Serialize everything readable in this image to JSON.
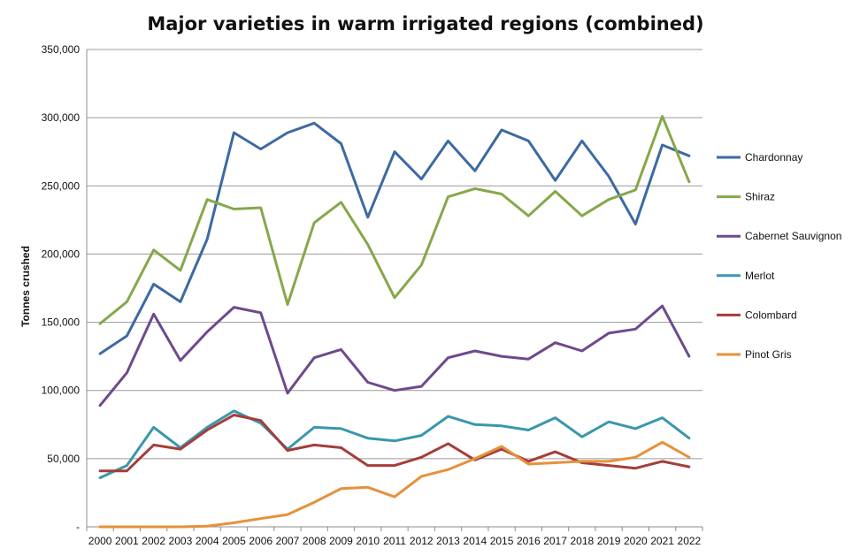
{
  "chart_data": {
    "type": "line",
    "title": "Major varieties in warm irrigated regions (combined)",
    "xlabel": "",
    "ylabel": "Tonnes crushed",
    "ylim": [
      0,
      350000
    ],
    "yticks": [
      0,
      50000,
      100000,
      150000,
      200000,
      250000,
      300000,
      350000
    ],
    "ytick_labels": [
      "-",
      "50,000",
      "100,000",
      "150,000",
      "200,000",
      "250,000",
      "300,000",
      "350,000"
    ],
    "grid": true,
    "legend_position": "right",
    "categories": [
      "2000",
      "2001",
      "2002",
      "2003",
      "2004",
      "2005",
      "2006",
      "2007",
      "2008",
      "2009",
      "2010",
      "2011",
      "2012",
      "2013",
      "2014",
      "2015",
      "2016",
      "2017",
      "2018",
      "2019",
      "2020",
      "2021",
      "2022"
    ],
    "series": [
      {
        "name": "Chardonnay",
        "color": "#3d6aa2",
        "values": [
          127000,
          140000,
          178000,
          165000,
          211000,
          289000,
          277000,
          289000,
          296000,
          281000,
          227000,
          275000,
          255000,
          283000,
          261000,
          291000,
          283000,
          254000,
          283000,
          257000,
          222000,
          280000,
          272000
        ]
      },
      {
        "name": "Shiraz",
        "color": "#86a84a",
        "values": [
          149000,
          165000,
          203000,
          188000,
          240000,
          233000,
          234000,
          163000,
          223000,
          238000,
          207000,
          168000,
          192000,
          242000,
          248000,
          244000,
          228000,
          246000,
          228000,
          240000,
          247000,
          301000,
          253000
        ]
      },
      {
        "name": "Cabernet Sauvignon",
        "color": "#6e4a8d",
        "values": [
          89000,
          113000,
          156000,
          122000,
          143000,
          161000,
          157000,
          98000,
          124000,
          130000,
          106000,
          100000,
          103000,
          124000,
          129000,
          125000,
          123000,
          135000,
          129000,
          142000,
          145000,
          162000,
          125000
        ]
      },
      {
        "name": "Merlot",
        "color": "#3a97ad",
        "values": [
          36000,
          45000,
          73000,
          58000,
          73000,
          85000,
          76000,
          57000,
          73000,
          72000,
          65000,
          63000,
          67000,
          81000,
          75000,
          74000,
          71000,
          80000,
          66000,
          77000,
          72000,
          80000,
          65000
        ]
      },
      {
        "name": "Colombard",
        "color": "#a53d3a",
        "values": [
          41000,
          41000,
          60000,
          57000,
          71000,
          82000,
          78000,
          56000,
          60000,
          58000,
          45000,
          45000,
          51000,
          61000,
          49000,
          57000,
          48000,
          55000,
          47000,
          45000,
          43000,
          48000,
          44000
        ]
      },
      {
        "name": "Pinot Gris",
        "color": "#e5913b",
        "values": [
          0,
          0,
          0,
          0,
          500,
          3000,
          6000,
          9000,
          18000,
          28000,
          29000,
          22000,
          37000,
          42000,
          50000,
          59000,
          46000,
          47000,
          48000,
          48000,
          51000,
          62000,
          51000
        ]
      }
    ]
  }
}
